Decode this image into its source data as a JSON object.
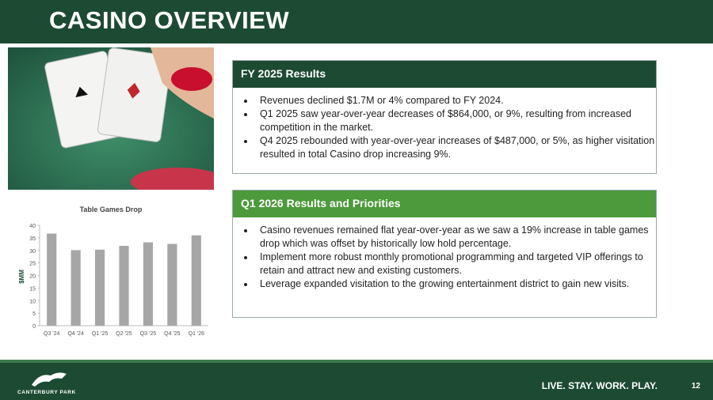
{
  "header": {
    "title": "CASINO OVERVIEW"
  },
  "panels": [
    {
      "title": "FY 2025 Results",
      "bullets": [
        "Revenues declined $1.7M or 4% compared to FY 2024.",
        "Q1 2025 saw year-over-year decreases of $864,000, or 9%, resulting from increased competition in the market.",
        "Q4 2025 rebounded with year-over-year increases of $487,000, or 5%, as higher visitation resulted in total Casino drop increasing 9%."
      ]
    },
    {
      "title": "Q1 2026 Results and Priorities",
      "bullets": [
        "Casino revenues remained flat year-over-year as we saw a 19% increase in table games drop which was offset by historically low hold percentage.",
        "Implement more robust monthly promotional programming and targeted VIP offerings to retain and attract new and existing customers.",
        "Leverage expanded visitation to the growing entertainment district to gain new visits."
      ]
    }
  ],
  "chart_data": {
    "type": "bar",
    "title": "Table Games Drop",
    "y_label": "$MM",
    "categories": [
      "Q3 '24",
      "Q4 '24",
      "Q1 '25",
      "Q2 '25",
      "Q3 '25",
      "Q4 '25",
      "Q1 '26"
    ],
    "values": [
      36.7,
      30.1,
      30.3,
      31.8,
      33.2,
      32.6,
      36.0
    ],
    "color": "#a6a6a6",
    "ylim": [
      0,
      40
    ],
    "yticks": [
      0,
      5,
      10,
      15,
      20,
      25,
      30,
      35,
      40
    ]
  },
  "footer": {
    "logo": "CANTERBURY PARK",
    "tagline": "LIVE. STAY. WORK. PLAY.",
    "page": "12"
  }
}
